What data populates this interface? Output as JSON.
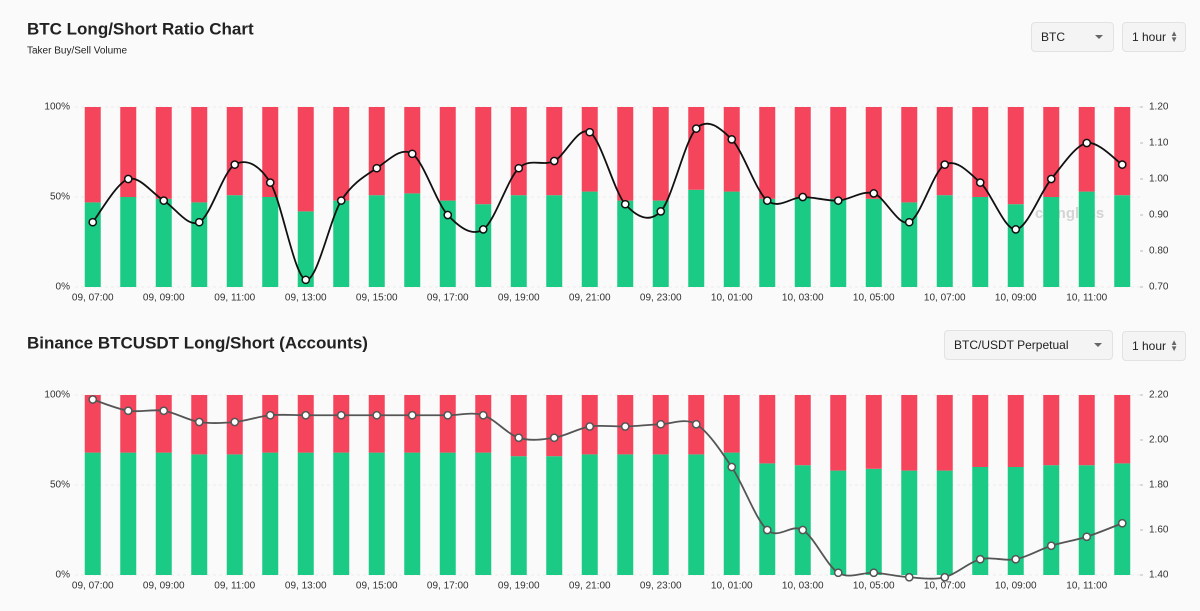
{
  "chart_data": [
    {
      "type": "bar",
      "title": "BTC Long/Short Ratio Chart",
      "subtitle": "Taker Buy/Sell Volume",
      "watermark": "coinglass",
      "categories": [
        "09, 07:00",
        null,
        "09, 09:00",
        null,
        "09, 11:00",
        null,
        "09, 13:00",
        null,
        "09, 15:00",
        null,
        "09, 17:00",
        null,
        "09, 19:00",
        null,
        "09, 21:00",
        null,
        "09, 23:00",
        null,
        "10, 01:00",
        null,
        "10, 03:00",
        null,
        "10, 05:00",
        null,
        "10, 07:00",
        null,
        "10, 09:00",
        null,
        "10, 11:00",
        null
      ],
      "series": [
        {
          "type": "bar",
          "color": "#1bcb85",
          "values": [
            47,
            50,
            49,
            47,
            51,
            50,
            42,
            48,
            51,
            52,
            48,
            46,
            51,
            51,
            53,
            48,
            48,
            54,
            53,
            49,
            50,
            49,
            49,
            47,
            51,
            50,
            46,
            50,
            53,
            51
          ]
        },
        {
          "type": "bar",
          "color": "#f5455c",
          "values": [
            53,
            50,
            51,
            53,
            49,
            50,
            58,
            52,
            49,
            48,
            52,
            54,
            49,
            49,
            47,
            52,
            52,
            46,
            47,
            51,
            50,
            51,
            51,
            53,
            49,
            50,
            54,
            50,
            47,
            49
          ]
        },
        {
          "type": "line",
          "axis": "y2",
          "color": "#111111",
          "values": [
            0.88,
            1.0,
            0.94,
            0.88,
            1.04,
            0.99,
            0.72,
            0.94,
            1.03,
            1.07,
            0.9,
            0.86,
            1.03,
            1.05,
            1.13,
            0.93,
            0.91,
            1.14,
            1.11,
            0.94,
            0.95,
            0.94,
            0.96,
            0.88,
            1.04,
            0.99,
            0.86,
            1.0,
            1.1,
            1.04
          ]
        }
      ],
      "ylim": [
        0,
        100
      ],
      "yticks": [
        {
          "value": 0,
          "label": "0%"
        },
        {
          "value": 50,
          "label": "50%"
        },
        {
          "value": 100,
          "label": "100%"
        }
      ],
      "y2lim": [
        0.7,
        1.2
      ],
      "y2ticks": [
        {
          "value": 0.7,
          "label": "0.70"
        },
        {
          "value": 0.8,
          "label": "0.80"
        },
        {
          "value": 0.9,
          "label": "0.90"
        },
        {
          "value": 1.0,
          "label": "1.00"
        },
        {
          "value": 1.1,
          "label": "1.10"
        },
        {
          "value": 1.2,
          "label": "1.20"
        }
      ],
      "grid": true,
      "controls": {
        "symbol": "BTC",
        "interval": "1 hour"
      }
    },
    {
      "type": "bar",
      "title": "Binance BTCUSDT Long/Short (Accounts)",
      "categories": [
        "09, 07:00",
        null,
        "09, 09:00",
        null,
        "09, 11:00",
        null,
        "09, 13:00",
        null,
        "09, 15:00",
        null,
        "09, 17:00",
        null,
        "09, 19:00",
        null,
        "09, 21:00",
        null,
        "09, 23:00",
        null,
        "10, 01:00",
        null,
        "10, 03:00",
        null,
        "10, 05:00",
        null,
        "10, 07:00",
        null,
        "10, 09:00",
        null,
        "10, 11:00",
        null
      ],
      "series": [
        {
          "type": "bar",
          "color": "#1bcb85",
          "values": [
            68,
            68,
            68,
            67,
            67,
            68,
            68,
            68,
            68,
            68,
            68,
            68,
            66,
            66,
            67,
            67,
            67,
            67,
            68,
            62,
            61,
            58,
            59,
            58,
            58,
            60,
            60,
            61,
            61,
            62
          ]
        },
        {
          "type": "bar",
          "color": "#f5455c",
          "values": [
            32,
            32,
            32,
            33,
            33,
            32,
            32,
            32,
            32,
            32,
            32,
            32,
            34,
            34,
            33,
            33,
            33,
            33,
            32,
            38,
            39,
            42,
            41,
            42,
            42,
            40,
            40,
            39,
            39,
            38
          ]
        },
        {
          "type": "line",
          "axis": "y2",
          "color": "#555555",
          "values": [
            2.18,
            2.13,
            2.13,
            2.08,
            2.08,
            2.11,
            2.11,
            2.11,
            2.11,
            2.11,
            2.11,
            2.11,
            2.01,
            2.01,
            2.06,
            2.06,
            2.07,
            2.07,
            1.88,
            1.6,
            1.6,
            1.41,
            1.41,
            1.39,
            1.39,
            1.47,
            1.47,
            1.53,
            1.57,
            1.63
          ]
        }
      ],
      "ylim": [
        0,
        100
      ],
      "yticks": [
        {
          "value": 0,
          "label": "0%"
        },
        {
          "value": 50,
          "label": "50%"
        },
        {
          "value": 100,
          "label": "100%"
        }
      ],
      "y2lim": [
        1.4,
        2.2
      ],
      "y2ticks": [
        {
          "value": 1.4,
          "label": "1.40"
        },
        {
          "value": 1.6,
          "label": "1.60"
        },
        {
          "value": 1.8,
          "label": "1.80"
        },
        {
          "value": 2.0,
          "label": "2.00"
        },
        {
          "value": 2.2,
          "label": "2.20"
        }
      ],
      "grid": true,
      "controls": {
        "symbol": "BTC/USDT Perpetual",
        "interval": "1 hour"
      }
    }
  ]
}
